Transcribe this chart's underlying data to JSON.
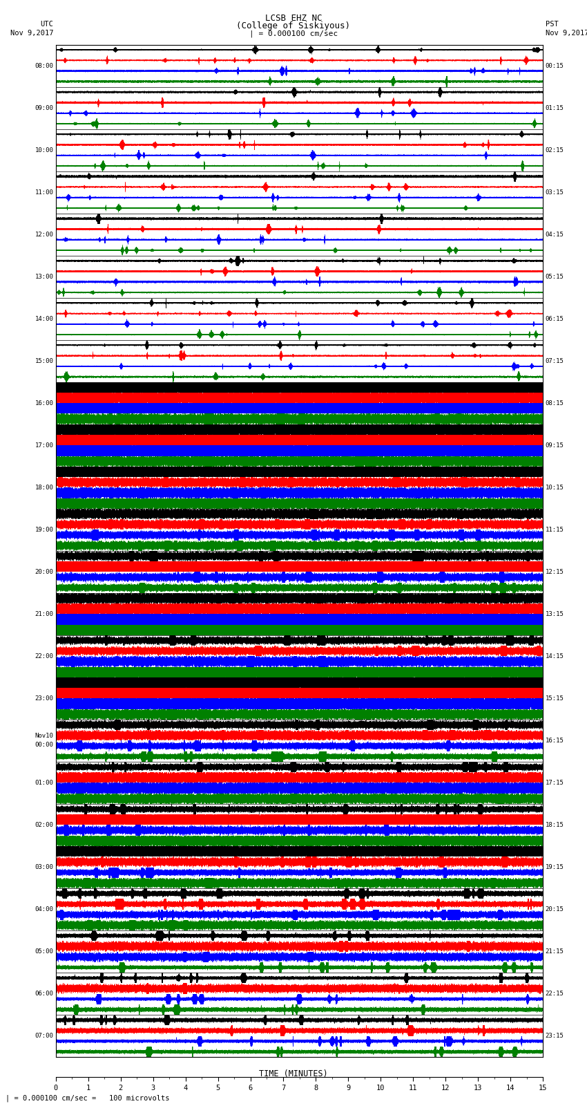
{
  "title_line1": "LCSB EHZ NC",
  "title_line2": "(College of Siskiyous)",
  "title_scale": "| = 0.000100 cm/sec",
  "left_label_top": "UTC",
  "left_label_date": "Nov 9,2017",
  "right_label_top": "PST",
  "right_label_date": "Nov 9,2017",
  "xlabel": "TIME (MINUTES)",
  "bottom_note": "| = 0.000100 cm/sec =   100 microvolts",
  "colors": [
    "black",
    "red",
    "blue",
    "green"
  ],
  "utc_times": [
    "08:00",
    "09:00",
    "10:00",
    "11:00",
    "12:00",
    "13:00",
    "14:00",
    "15:00",
    "16:00",
    "17:00",
    "18:00",
    "19:00",
    "20:00",
    "21:00",
    "22:00",
    "23:00",
    "Nov10\n00:00",
    "01:00",
    "02:00",
    "03:00",
    "04:00",
    "05:00",
    "06:00",
    "07:00"
  ],
  "pst_times": [
    "00:15",
    "01:15",
    "02:15",
    "03:15",
    "04:15",
    "05:15",
    "06:15",
    "07:15",
    "08:15",
    "09:15",
    "10:15",
    "11:15",
    "12:15",
    "13:15",
    "14:15",
    "15:15",
    "16:15",
    "17:15",
    "18:15",
    "19:15",
    "20:15",
    "21:15",
    "22:15",
    "23:15"
  ],
  "n_rows": 24,
  "traces_per_row": 4,
  "n_minutes": 15,
  "sample_rate": 100,
  "background_color": "white",
  "figsize": [
    8.5,
    16.13
  ],
  "dpi": 100
}
